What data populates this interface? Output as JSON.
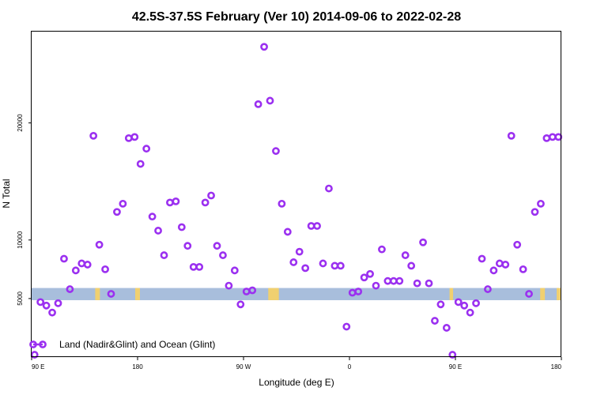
{
  "chart_data": {
    "type": "scatter",
    "title": "42.5S-37.5S February (Ver 10)   2014-09-06 to 2022-02-28",
    "xlabel": "Longitude (deg E)",
    "ylabel": "N Total",
    "x_ticks": [
      {
        "value": 90,
        "label": "90 E"
      },
      {
        "value": 180,
        "label": "180"
      },
      {
        "value": 270,
        "label": "90 W"
      },
      {
        "value": 360,
        "label": "0"
      },
      {
        "value": 450,
        "label": "90 E"
      },
      {
        "value": 540,
        "label": "180"
      }
    ],
    "y_ticks": [
      {
        "value": 5000,
        "label": "5000"
      },
      {
        "value": 10000,
        "label": "10000"
      },
      {
        "value": 20000,
        "label": "20000"
      }
    ],
    "xlim": [
      90,
      540
    ],
    "ylim": [
      0,
      27800
    ],
    "grid": false,
    "legend_position": "bottom-left",
    "series": [
      {
        "name": "Land (Nadir&Glint) and Ocean (Glint)",
        "color": "#9b30f0",
        "marker": "open-circle",
        "x": [
          92.5,
          97.5,
          102.5,
          107.5,
          112.5,
          117.5,
          122.5,
          127.5,
          132.5,
          137.5,
          142.5,
          147.5,
          152.5,
          157.5,
          162.5,
          167.5,
          172.5,
          177.5,
          182.5,
          187.5,
          192.5,
          197.5,
          202.5,
          207.5,
          212.5,
          217.5,
          222.5,
          227.5,
          232.5,
          237.5,
          242.5,
          247.5,
          252.5,
          257.5,
          262.5,
          267.5,
          272.5,
          277.5,
          282.5,
          287.5,
          292.5,
          297.5,
          302.5,
          307.5,
          312.5,
          317.5,
          322.5,
          327.5,
          332.5,
          337.5,
          342.5,
          347.5,
          352.5,
          357.5,
          362.5,
          367.5,
          372.5,
          377.5,
          382.5,
          387.5,
          392.5,
          397.5,
          402.5,
          407.5,
          412.5,
          417.5,
          422.5,
          427.5,
          432.5,
          437.5,
          442.5,
          447.5,
          452.5,
          457.5,
          462.5,
          467.5,
          472.5,
          477.5,
          482.5,
          487.5,
          492.5,
          497.5,
          502.5,
          507.5,
          512.5,
          517.5,
          522.5,
          527.5,
          532.5,
          537.5
        ],
        "y": [
          200,
          4700,
          4400,
          3800,
          4600,
          8400,
          5800,
          7400,
          8000,
          7900,
          18900,
          9600,
          7500,
          5400,
          12400,
          13100,
          18700,
          18800,
          16500,
          17800,
          12000,
          10800,
          8700,
          13200,
          13300,
          11100,
          9500,
          7700,
          7700,
          13200,
          13800,
          9500,
          8700,
          6100,
          7400,
          4500,
          5600,
          5700,
          21600,
          26500,
          21900,
          17600,
          13100,
          10700,
          8100,
          9000,
          7600,
          11200,
          11200,
          8000,
          14400,
          7800,
          7800,
          2600,
          5500,
          5600,
          6800,
          7100,
          6100,
          9200,
          6500,
          6500,
          6500,
          8700,
          7800,
          6300,
          9800,
          6300,
          3100,
          4500,
          2500,
          200,
          4700,
          4400,
          3800,
          4600,
          8400,
          5800,
          7400,
          8000,
          7900,
          18900,
          9600,
          7500,
          5400,
          12400,
          13100,
          18700,
          18800,
          18800
        ]
      }
    ],
    "ocean_band": {
      "color": "#a8bedc",
      "y_range": [
        4860,
        5900
      ]
    },
    "land_segments": {
      "color": "#f0d070",
      "x_ranges": [
        [
          144,
          148
        ],
        [
          178,
          182
        ],
        [
          291,
          300
        ],
        [
          445,
          448
        ],
        [
          522,
          526
        ],
        [
          536,
          540
        ]
      ]
    }
  }
}
